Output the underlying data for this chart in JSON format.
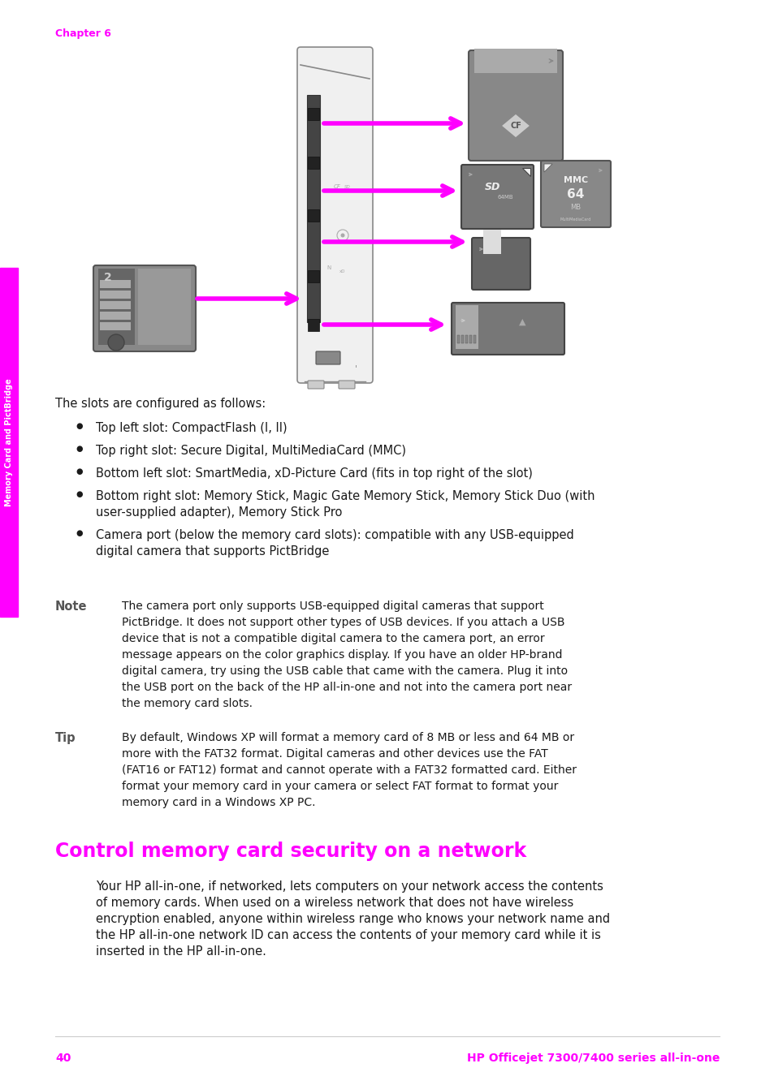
{
  "bg_color": "#ffffff",
  "magenta": "#FF00FF",
  "dark_text": "#1a1a1a",
  "gray_text": "#555555",
  "chapter_label": "Chapter 6",
  "sidebar_text": "Memory Card and PictBridge",
  "page_number": "40",
  "footer_right": "HP Officejet 7300/7400 series all-in-one",
  "section_title": "Control memory card security on a network",
  "intro_text": "The slots are configured as follows:",
  "bullet_points": [
    "Top left slot: CompactFlash (I, II)",
    "Top right slot: Secure Digital, MultiMediaCard (MMC)",
    "Bottom left slot: SmartMedia, xD-Picture Card (fits in top right of the slot)",
    "Bottom right slot: Memory Stick, Magic Gate Memory Stick, Memory Stick Duo (with\nuser-supplied adapter), Memory Stick Pro",
    "Camera port (below the memory card slots): compatible with any USB-equipped\ndigital camera that supports PictBridge"
  ],
  "note_label": "Note",
  "note_text": "The camera port only supports USB-equipped digital cameras that support\nPictBridge. It does not support other types of USB devices. If you attach a USB\ndevice that is not a compatible digital camera to the camera port, an error\nmessage appears on the color graphics display. If you have an older HP-brand\ndigital camera, try using the USB cable that came with the camera. Plug it into\nthe USB port on the back of the HP all-in-one and not into the camera port near\nthe memory card slots.",
  "tip_label": "Tip",
  "tip_text": "By default, Windows XP will format a memory card of 8 MB or less and 64 MB or\nmore with the FAT32 format. Digital cameras and other devices use the FAT\n(FAT16 or FAT12) format and cannot operate with a FAT32 formatted card. Either\nformat your memory card in your camera or select FAT format to format your\nmemory card in a Windows XP PC.",
  "section_body": "Your HP all-in-one, if networked, lets computers on your network access the contents\nof memory cards. When used on a wireless network that does not have wireless\nencryption enabled, anyone within wireless range who knows your network name and\nthe HP all-in-one network ID can access the contents of your memory card while it is\ninserted in the HP all-in-one."
}
